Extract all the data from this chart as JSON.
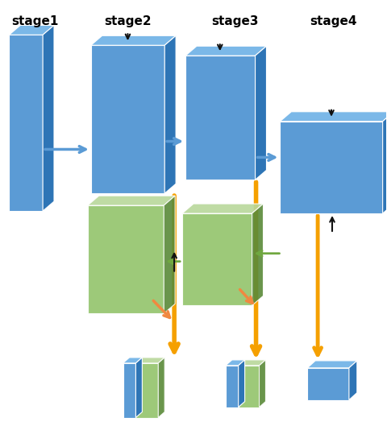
{
  "stage_labels": [
    "stage1",
    "stage2",
    "stage3",
    "stage4"
  ],
  "blue_face": "#5b9bd5",
  "blue_top": "#7bb8e8",
  "blue_side": "#2e75b6",
  "green_face": "#92c36a",
  "green_top": "#b8d89a",
  "green_side": "#5a8a38",
  "orange_arrow": "#f5a000",
  "salmon_arrow": "#f08840",
  "black_arrow": "#111111",
  "blue_arrow": "#5b9bd5",
  "green_arrow": "#70a840",
  "bg_color": "#ffffff"
}
